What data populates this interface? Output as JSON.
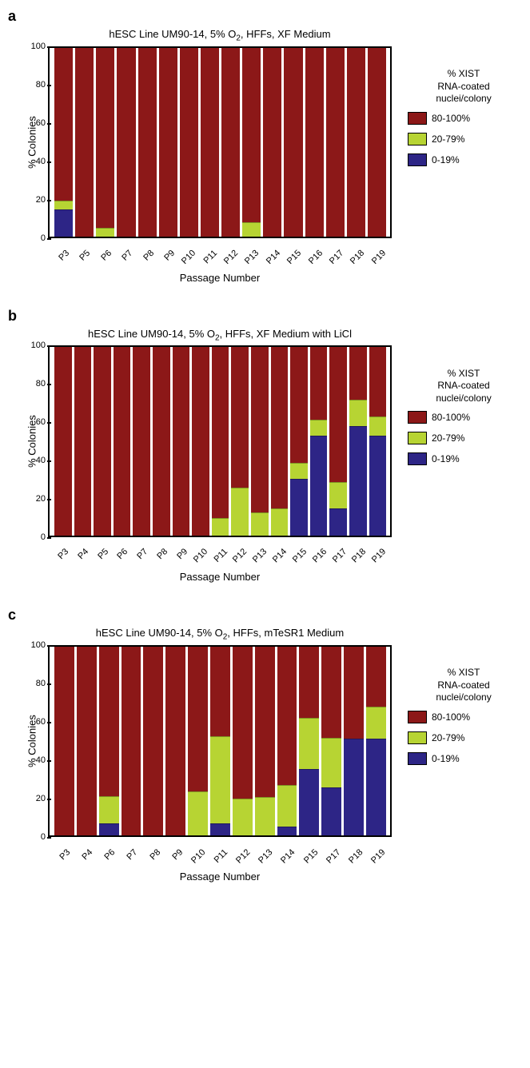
{
  "colors": {
    "high": "#8c1818",
    "mid": "#b7d433",
    "low": "#2d2586",
    "border": "#000000",
    "background": "#ffffff"
  },
  "y_axis": {
    "label": "% Colonies",
    "min": 0,
    "max": 100,
    "ticks": [
      0,
      20,
      40,
      60,
      80,
      100
    ]
  },
  "x_axis": {
    "label": "Passage Number"
  },
  "legend": {
    "title_line1": "% XIST",
    "title_line2": "RNA-coated",
    "title_line3": "nuclei/colony",
    "items": [
      {
        "label": "80-100%",
        "color_key": "high"
      },
      {
        "label": "20-79%",
        "color_key": "mid"
      },
      {
        "label": "0-19%",
        "color_key": "low"
      }
    ]
  },
  "panels": [
    {
      "id": "a",
      "title_prefix": "hESC Line UM90-14, 5% O",
      "title_sub": "2",
      "title_suffix": ", HFFs, XF Medium",
      "bars": [
        {
          "x": "P3",
          "low": 14,
          "mid": 4,
          "high": 82
        },
        {
          "x": "P5",
          "low": 0,
          "mid": 0,
          "high": 100
        },
        {
          "x": "P6",
          "low": 0,
          "mid": 4,
          "high": 96
        },
        {
          "x": "P7",
          "low": 0,
          "mid": 0,
          "high": 100
        },
        {
          "x": "P8",
          "low": 0,
          "mid": 0,
          "high": 100
        },
        {
          "x": "P9",
          "low": 0,
          "mid": 0,
          "high": 100
        },
        {
          "x": "P10",
          "low": 0,
          "mid": 0,
          "high": 100
        },
        {
          "x": "P11",
          "low": 0,
          "mid": 0,
          "high": 100
        },
        {
          "x": "P12",
          "low": 0,
          "mid": 0,
          "high": 100
        },
        {
          "x": "P13",
          "low": 0,
          "mid": 7,
          "high": 93
        },
        {
          "x": "P14",
          "low": 0,
          "mid": 0,
          "high": 100
        },
        {
          "x": "P15",
          "low": 0,
          "mid": 0,
          "high": 100
        },
        {
          "x": "P16",
          "low": 0,
          "mid": 0,
          "high": 100
        },
        {
          "x": "P17",
          "low": 0,
          "mid": 0,
          "high": 100
        },
        {
          "x": "P18",
          "low": 0,
          "mid": 0,
          "high": 100
        },
        {
          "x": "P19",
          "low": 0,
          "mid": 0,
          "high": 100
        }
      ]
    },
    {
      "id": "b",
      "title_prefix": "hESC Line UM90-14, 5% O",
      "title_sub": "2",
      "title_suffix": ", HFFs, XF Medium with LiCl",
      "bars": [
        {
          "x": "P3",
          "low": 0,
          "mid": 0,
          "high": 100
        },
        {
          "x": "P4",
          "low": 0,
          "mid": 0,
          "high": 100
        },
        {
          "x": "P5",
          "low": 0,
          "mid": 0,
          "high": 100
        },
        {
          "x": "P6",
          "low": 0,
          "mid": 0,
          "high": 100
        },
        {
          "x": "P7",
          "low": 0,
          "mid": 0,
          "high": 100
        },
        {
          "x": "P8",
          "low": 0,
          "mid": 0,
          "high": 100
        },
        {
          "x": "P9",
          "low": 0,
          "mid": 0,
          "high": 100
        },
        {
          "x": "P10",
          "low": 0,
          "mid": 0,
          "high": 100
        },
        {
          "x": "P11",
          "low": 0,
          "mid": 9,
          "high": 91
        },
        {
          "x": "P12",
          "low": 0,
          "mid": 25,
          "high": 75
        },
        {
          "x": "P13",
          "low": 0,
          "mid": 12,
          "high": 88
        },
        {
          "x": "P14",
          "low": 0,
          "mid": 14,
          "high": 86
        },
        {
          "x": "P15",
          "low": 30,
          "mid": 8,
          "high": 62
        },
        {
          "x": "P16",
          "low": 53,
          "mid": 8,
          "high": 39
        },
        {
          "x": "P17",
          "low": 14,
          "mid": 14,
          "high": 72
        },
        {
          "x": "P18",
          "low": 58,
          "mid": 14,
          "high": 28
        },
        {
          "x": "P19",
          "low": 53,
          "mid": 10,
          "high": 37
        }
      ]
    },
    {
      "id": "c",
      "title_prefix": "hESC Line UM90-14, 5% O",
      "title_sub": "2",
      "title_suffix": ", HFFs, mTeSR1 Medium",
      "bars": [
        {
          "x": "P3",
          "low": 0,
          "mid": 0,
          "high": 100
        },
        {
          "x": "P4",
          "low": 0,
          "mid": 0,
          "high": 100
        },
        {
          "x": "P6",
          "low": 6,
          "mid": 14,
          "high": 80
        },
        {
          "x": "P7",
          "low": 0,
          "mid": 0,
          "high": 100
        },
        {
          "x": "P8",
          "low": 0,
          "mid": 0,
          "high": 100
        },
        {
          "x": "P9",
          "low": 0,
          "mid": 0,
          "high": 100
        },
        {
          "x": "P10",
          "low": 0,
          "mid": 23,
          "high": 77
        },
        {
          "x": "P11",
          "low": 6,
          "mid": 46,
          "high": 48
        },
        {
          "x": "P12",
          "low": 0,
          "mid": 19,
          "high": 81
        },
        {
          "x": "P13",
          "low": 0,
          "mid": 20,
          "high": 80
        },
        {
          "x": "P14",
          "low": 4,
          "mid": 22,
          "high": 74
        },
        {
          "x": "P15",
          "low": 35,
          "mid": 27,
          "high": 38
        },
        {
          "x": "P17",
          "low": 25,
          "mid": 26,
          "high": 49
        },
        {
          "x": "P18",
          "low": 51,
          "mid": 0,
          "high": 49
        },
        {
          "x": "P19",
          "low": 51,
          "mid": 17,
          "high": 32
        }
      ]
    }
  ]
}
